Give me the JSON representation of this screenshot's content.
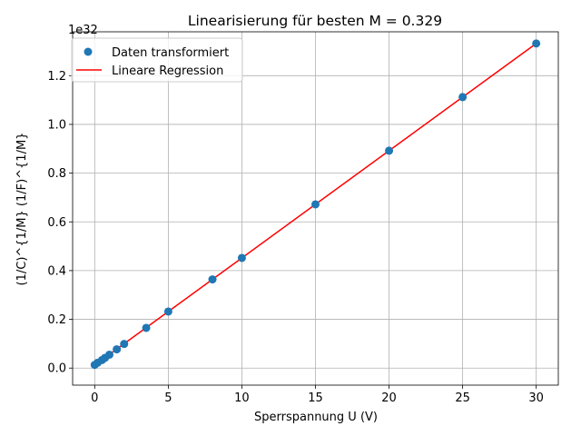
{
  "chart_data": {
    "type": "scatter",
    "title": "Linearisierung für besten M = 0.329",
    "xlabel": "Sperrspannung U (V)",
    "ylabel": "(1/C)^{1/M}  (1/F)^{1/M}",
    "y_offset_text": "1e32",
    "xlim": [
      -1.5,
      31.5
    ],
    "ylim": [
      -0.07,
      1.38
    ],
    "x_ticks": [
      0,
      5,
      10,
      15,
      20,
      25,
      30
    ],
    "x_tick_labels": [
      "0",
      "5",
      "10",
      "15",
      "20",
      "25",
      "30"
    ],
    "y_ticks": [
      0.0,
      0.2,
      0.4,
      0.6,
      0.8,
      1.0,
      1.2
    ],
    "y_tick_labels": [
      "0.0",
      "0.2",
      "0.4",
      "0.6",
      "0.8",
      "1.0",
      "1.2"
    ],
    "grid": true,
    "legend_position": "top-left",
    "series": [
      {
        "name": "Daten transformiert",
        "kind": "scatter",
        "color": "#1f77b4",
        "x": [
          0,
          0.2,
          0.5,
          0.7,
          1.0,
          1.5,
          2.0,
          3.5,
          5,
          8,
          10,
          15,
          20,
          25,
          30
        ],
        "y": [
          0.013,
          0.022,
          0.033,
          0.042,
          0.055,
          0.077,
          0.099,
          0.165,
          0.232,
          0.364,
          0.452,
          0.672,
          0.892,
          1.112,
          1.332
        ]
      },
      {
        "name": "Lineare Regression",
        "kind": "line",
        "color": "#ff0000",
        "x": [
          0,
          30
        ],
        "y": [
          0.012,
          1.332
        ]
      }
    ]
  }
}
